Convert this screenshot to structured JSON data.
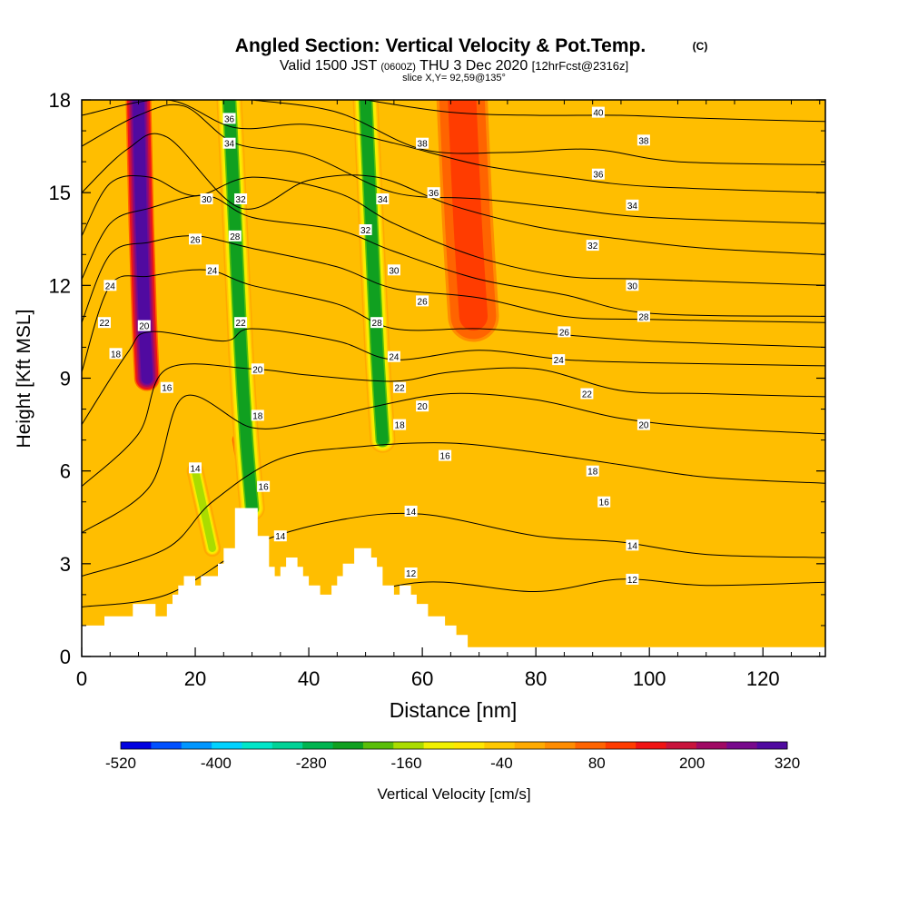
{
  "chart_data": {
    "type": "heatmap",
    "title": "Angled Section: Vertical Velocity & Pot.Temp.",
    "title_mark": "(C)",
    "subtitle_parts": [
      "Valid 1500 JST ",
      "(0600Z)",
      " THU 3 Dec 2020 ",
      "[12hrFcst@2316z]"
    ],
    "slice_label": "slice X,Y= 92,59@135°",
    "xlabel": "Distance [nm]",
    "ylabel": "Height [Kft MSL]",
    "xlim": [
      0,
      131
    ],
    "ylim": [
      0,
      18
    ],
    "x_ticks": [
      0,
      20,
      40,
      60,
      80,
      100,
      120
    ],
    "y_ticks": [
      0,
      3,
      6,
      9,
      12,
      15,
      18
    ],
    "colorbar": {
      "label": "Vertical Velocity [cm/s]",
      "tick_labels": [
        -520,
        -400,
        -280,
        -160,
        -40,
        80,
        200,
        320
      ],
      "colors": [
        "#0000e0",
        "#0050ff",
        "#0096ff",
        "#00d2ff",
        "#00e6c8",
        "#00d296",
        "#00b450",
        "#10a020",
        "#5abe0a",
        "#aadc00",
        "#f0f000",
        "#ffe600",
        "#ffc800",
        "#ffaa00",
        "#ff8c00",
        "#ff6400",
        "#ff3c00",
        "#f01414",
        "#c8143c",
        "#a00a64",
        "#780a8c",
        "#500aa0"
      ]
    },
    "terrain_kft": [
      [
        0,
        1.0
      ],
      [
        4,
        1.0
      ],
      [
        4,
        1.3
      ],
      [
        9,
        1.3
      ],
      [
        9,
        1.7
      ],
      [
        13,
        1.7
      ],
      [
        13,
        1.3
      ],
      [
        15,
        1.3
      ],
      [
        15,
        1.7
      ],
      [
        16,
        1.7
      ],
      [
        16,
        2.0
      ],
      [
        17,
        2.0
      ],
      [
        17,
        2.3
      ],
      [
        18,
        2.3
      ],
      [
        18,
        2.6
      ],
      [
        20,
        2.6
      ],
      [
        20,
        2.3
      ],
      [
        21,
        2.3
      ],
      [
        21,
        2.6
      ],
      [
        24,
        2.6
      ],
      [
        24,
        3.0
      ],
      [
        25,
        3.0
      ],
      [
        25,
        3.5
      ],
      [
        27,
        3.5
      ],
      [
        27,
        4.8
      ],
      [
        31,
        4.8
      ],
      [
        31,
        3.9
      ],
      [
        33,
        3.9
      ],
      [
        33,
        2.9
      ],
      [
        34,
        2.9
      ],
      [
        34,
        2.6
      ],
      [
        35,
        2.6
      ],
      [
        35,
        2.9
      ],
      [
        36,
        2.9
      ],
      [
        36,
        3.2
      ],
      [
        38,
        3.2
      ],
      [
        38,
        2.9
      ],
      [
        39,
        2.9
      ],
      [
        39,
        2.6
      ],
      [
        40,
        2.6
      ],
      [
        40,
        2.3
      ],
      [
        42,
        2.3
      ],
      [
        42,
        2.0
      ],
      [
        44,
        2.0
      ],
      [
        44,
        2.3
      ],
      [
        45,
        2.3
      ],
      [
        45,
        2.6
      ],
      [
        46,
        2.6
      ],
      [
        46,
        3.0
      ],
      [
        48,
        3.0
      ],
      [
        48,
        3.5
      ],
      [
        51,
        3.5
      ],
      [
        51,
        3.2
      ],
      [
        52,
        3.2
      ],
      [
        52,
        2.9
      ],
      [
        53,
        2.9
      ],
      [
        53,
        2.3
      ],
      [
        55,
        2.3
      ],
      [
        55,
        2.0
      ],
      [
        56,
        2.0
      ],
      [
        56,
        2.3
      ],
      [
        58,
        2.3
      ],
      [
        58,
        2.0
      ],
      [
        59,
        2.0
      ],
      [
        59,
        1.7
      ],
      [
        61,
        1.7
      ],
      [
        61,
        1.3
      ],
      [
        64,
        1.3
      ],
      [
        64,
        1.0
      ],
      [
        66,
        1.0
      ],
      [
        66,
        0.7
      ],
      [
        68,
        0.7
      ],
      [
        68,
        0.3
      ],
      [
        131,
        0.3
      ],
      [
        131,
        0
      ]
    ],
    "updrafts": [
      {
        "path": [
          [
            10,
            18
          ],
          [
            10.5,
            14
          ],
          [
            11,
            11
          ],
          [
            11.5,
            9
          ]
        ],
        "width_nm": 3,
        "peak_cm_s": 320
      },
      {
        "path": [
          [
            67,
            18
          ],
          [
            68,
            14
          ],
          [
            69,
            11
          ]
        ],
        "width_nm": 6,
        "peak_cm_s": 110
      },
      {
        "path": [
          [
            28,
            7
          ],
          [
            30,
            4.8
          ]
        ],
        "width_nm": 2,
        "peak_cm_s": 140
      }
    ],
    "downdrafts": [
      {
        "path": [
          [
            26,
            18
          ],
          [
            27,
            14
          ],
          [
            28,
            10
          ],
          [
            29,
            7
          ],
          [
            30,
            4.8
          ]
        ],
        "width_nm": 3,
        "peak_cm_s": -220
      },
      {
        "path": [
          [
            50,
            18
          ],
          [
            51,
            14
          ],
          [
            52,
            10
          ],
          [
            53,
            7
          ]
        ],
        "width_nm": 3,
        "peak_cm_s": -220
      },
      {
        "path": [
          [
            20,
            6
          ],
          [
            23,
            3.5
          ]
        ],
        "width_nm": 2,
        "peak_cm_s": -140
      }
    ],
    "theta_series": [
      {
        "name": "12",
        "points": [
          [
            0,
            0.8
          ],
          [
            20,
            1.0
          ],
          [
            40,
            1.6
          ],
          [
            60,
            2.4
          ],
          [
            80,
            2.1
          ],
          [
            95,
            2.5
          ],
          [
            110,
            2.3
          ],
          [
            131,
            2.4
          ]
        ]
      },
      {
        "name": "14",
        "points": [
          [
            0,
            1.6
          ],
          [
            15,
            2.0
          ],
          [
            30,
            3.6
          ],
          [
            45,
            4.4
          ],
          [
            60,
            4.6
          ],
          [
            80,
            3.9
          ],
          [
            95,
            3.7
          ],
          [
            110,
            3.3
          ],
          [
            131,
            3.2
          ]
        ]
      },
      {
        "name": "16",
        "points": [
          [
            0,
            2.6
          ],
          [
            15,
            3.5
          ],
          [
            23,
            5.0
          ],
          [
            35,
            6.4
          ],
          [
            50,
            6.8
          ],
          [
            65,
            6.9
          ],
          [
            80,
            6.6
          ],
          [
            95,
            6.2
          ],
          [
            110,
            5.8
          ],
          [
            131,
            5.6
          ]
        ]
      },
      {
        "name": "18",
        "points": [
          [
            0,
            4.0
          ],
          [
            12,
            5.5
          ],
          [
            18,
            8.4
          ],
          [
            30,
            7.4
          ],
          [
            40,
            7.6
          ],
          [
            52,
            8.1
          ],
          [
            65,
            8.5
          ],
          [
            80,
            8.3
          ],
          [
            95,
            7.7
          ],
          [
            110,
            7.4
          ],
          [
            131,
            7.2
          ]
        ]
      },
      {
        "name": "20",
        "points": [
          [
            0,
            5.5
          ],
          [
            10,
            7.2
          ],
          [
            15,
            9.3
          ],
          [
            30,
            9.3
          ],
          [
            40,
            9.1
          ],
          [
            55,
            8.9
          ],
          [
            65,
            9.2
          ],
          [
            80,
            9.3
          ],
          [
            95,
            8.6
          ],
          [
            110,
            8.5
          ],
          [
            131,
            8.4
          ]
        ]
      },
      {
        "name": "22",
        "points": [
          [
            0,
            7.5
          ],
          [
            8,
            9.8
          ],
          [
            12,
            10.5
          ],
          [
            25,
            10.2
          ],
          [
            30,
            10.6
          ],
          [
            45,
            10.2
          ],
          [
            55,
            9.6
          ],
          [
            70,
            9.9
          ],
          [
            85,
            9.6
          ],
          [
            100,
            9.5
          ],
          [
            131,
            9.4
          ]
        ]
      },
      {
        "name": "24",
        "points": [
          [
            0,
            9.2
          ],
          [
            5,
            12.0
          ],
          [
            12,
            12.3
          ],
          [
            22,
            12.5
          ],
          [
            30,
            12.0
          ],
          [
            45,
            11.4
          ],
          [
            55,
            10.6
          ],
          [
            70,
            10.6
          ],
          [
            85,
            10.4
          ],
          [
            100,
            10.2
          ],
          [
            131,
            10.0
          ]
        ]
      },
      {
        "name": "26",
        "points": [
          [
            0,
            10.8
          ],
          [
            5,
            13.0
          ],
          [
            12,
            13.4
          ],
          [
            20,
            13.6
          ],
          [
            30,
            13.2
          ],
          [
            45,
            12.6
          ],
          [
            55,
            11.9
          ],
          [
            70,
            11.6
          ],
          [
            85,
            11.0
          ],
          [
            100,
            10.9
          ],
          [
            131,
            10.8
          ]
        ]
      },
      {
        "name": "28",
        "points": [
          [
            0,
            12.2
          ],
          [
            5,
            14.0
          ],
          [
            12,
            14.5
          ],
          [
            22,
            14.9
          ],
          [
            30,
            14.2
          ],
          [
            45,
            13.8
          ],
          [
            55,
            13.1
          ],
          [
            70,
            12.2
          ],
          [
            85,
            11.7
          ],
          [
            100,
            11.1
          ],
          [
            131,
            11.0
          ]
        ]
      },
      {
        "name": "30",
        "points": [
          [
            0,
            13.6
          ],
          [
            5,
            15.3
          ],
          [
            12,
            15.5
          ],
          [
            20,
            14.9
          ],
          [
            30,
            15.5
          ],
          [
            45,
            15.0
          ],
          [
            55,
            14.0
          ],
          [
            70,
            12.9
          ],
          [
            85,
            12.3
          ],
          [
            100,
            12.2
          ],
          [
            131,
            12.0
          ]
        ]
      },
      {
        "name": "32",
        "points": [
          [
            0,
            15.0
          ],
          [
            8,
            16.4
          ],
          [
            15,
            16.8
          ],
          [
            28,
            14.5
          ],
          [
            40,
            15.4
          ],
          [
            52,
            15.5
          ],
          [
            65,
            14.6
          ],
          [
            80,
            13.9
          ],
          [
            95,
            13.5
          ],
          [
            110,
            13.2
          ],
          [
            131,
            13.0
          ]
        ]
      },
      {
        "name": "34",
        "points": [
          [
            0,
            16.5
          ],
          [
            10,
            17.5
          ],
          [
            18,
            17.8
          ],
          [
            27,
            16.6
          ],
          [
            40,
            16.2
          ],
          [
            55,
            15.0
          ],
          [
            70,
            14.8
          ],
          [
            85,
            14.5
          ],
          [
            100,
            14.2
          ],
          [
            131,
            14.0
          ]
        ]
      },
      {
        "name": "36",
        "points": [
          [
            0,
            17.5
          ],
          [
            15,
            18.0
          ],
          [
            27,
            17.1
          ],
          [
            40,
            17.2
          ],
          [
            55,
            16.6
          ],
          [
            70,
            15.9
          ],
          [
            85,
            15.5
          ],
          [
            100,
            15.2
          ],
          [
            131,
            15.0
          ]
        ]
      },
      {
        "name": "38",
        "points": [
          [
            30,
            18.0
          ],
          [
            45,
            17.6
          ],
          [
            60,
            16.4
          ],
          [
            75,
            16.3
          ],
          [
            90,
            16.4
          ],
          [
            105,
            16.0
          ],
          [
            131,
            15.9
          ]
        ]
      },
      {
        "name": "40",
        "points": [
          [
            50,
            18.0
          ],
          [
            65,
            17.6
          ],
          [
            80,
            17.5
          ],
          [
            95,
            17.5
          ],
          [
            110,
            17.4
          ],
          [
            131,
            17.3
          ]
        ]
      }
    ],
    "contour_labels": [
      {
        "text": "36",
        "x": 26,
        "y": 17.4
      },
      {
        "text": "34",
        "x": 26,
        "y": 16.6
      },
      {
        "text": "32",
        "x": 28,
        "y": 14.8
      },
      {
        "text": "30",
        "x": 22,
        "y": 14.8
      },
      {
        "text": "28",
        "x": 27,
        "y": 13.6
      },
      {
        "text": "26",
        "x": 20,
        "y": 13.5
      },
      {
        "text": "24",
        "x": 23,
        "y": 12.5
      },
      {
        "text": "24",
        "x": 5,
        "y": 12.0
      },
      {
        "text": "22",
        "x": 4,
        "y": 10.8
      },
      {
        "text": "20",
        "x": 11,
        "y": 10.7
      },
      {
        "text": "18",
        "x": 6,
        "y": 9.8
      },
      {
        "text": "16",
        "x": 15,
        "y": 8.7
      },
      {
        "text": "22",
        "x": 28,
        "y": 10.8
      },
      {
        "text": "20",
        "x": 31,
        "y": 9.3
      },
      {
        "text": "18",
        "x": 31,
        "y": 7.8
      },
      {
        "text": "14",
        "x": 20,
        "y": 6.1
      },
      {
        "text": "16",
        "x": 32,
        "y": 5.5
      },
      {
        "text": "14",
        "x": 35,
        "y": 3.9
      },
      {
        "text": "34",
        "x": 53,
        "y": 14.8
      },
      {
        "text": "32",
        "x": 50,
        "y": 13.8
      },
      {
        "text": "30",
        "x": 55,
        "y": 12.5
      },
      {
        "text": "28",
        "x": 52,
        "y": 10.8
      },
      {
        "text": "26",
        "x": 60,
        "y": 11.5
      },
      {
        "text": "24",
        "x": 55,
        "y": 9.7
      },
      {
        "text": "22",
        "x": 56,
        "y": 8.7
      },
      {
        "text": "20",
        "x": 60,
        "y": 8.1
      },
      {
        "text": "18",
        "x": 56,
        "y": 7.5
      },
      {
        "text": "16",
        "x": 64,
        "y": 6.5
      },
      {
        "text": "14",
        "x": 58,
        "y": 4.7
      },
      {
        "text": "12",
        "x": 58,
        "y": 2.7
      },
      {
        "text": "38",
        "x": 60,
        "y": 16.6
      },
      {
        "text": "36",
        "x": 62,
        "y": 15.0
      },
      {
        "text": "40",
        "x": 91,
        "y": 17.6
      },
      {
        "text": "38",
        "x": 99,
        "y": 16.7
      },
      {
        "text": "36",
        "x": 91,
        "y": 15.6
      },
      {
        "text": "34",
        "x": 97,
        "y": 14.6
      },
      {
        "text": "32",
        "x": 90,
        "y": 13.3
      },
      {
        "text": "30",
        "x": 97,
        "y": 12.0
      },
      {
        "text": "28",
        "x": 99,
        "y": 11.0
      },
      {
        "text": "26",
        "x": 85,
        "y": 10.5
      },
      {
        "text": "24",
        "x": 84,
        "y": 9.6
      },
      {
        "text": "22",
        "x": 89,
        "y": 8.5
      },
      {
        "text": "20",
        "x": 99,
        "y": 7.5
      },
      {
        "text": "18",
        "x": 90,
        "y": 6.0
      },
      {
        "text": "16",
        "x": 92,
        "y": 5.0
      },
      {
        "text": "14",
        "x": 97,
        "y": 3.6
      },
      {
        "text": "12",
        "x": 97,
        "y": 2.5
      }
    ]
  }
}
